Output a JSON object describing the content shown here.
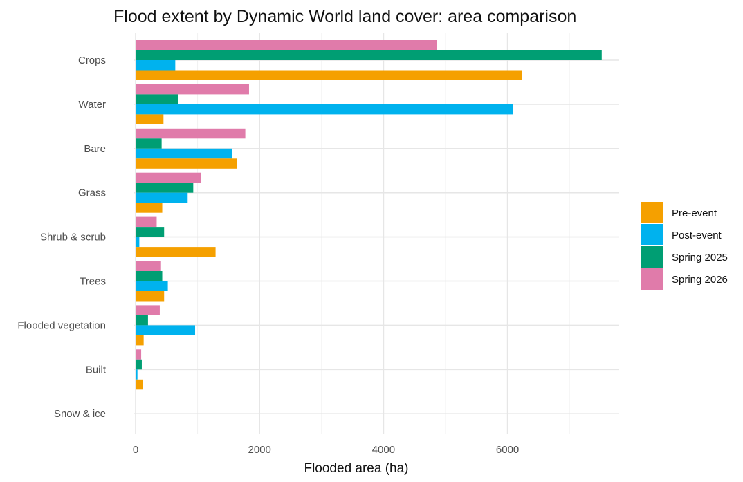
{
  "chart_data": {
    "type": "bar",
    "orientation": "horizontal",
    "title": "Flood extent by Dynamic World land cover: area comparison",
    "xlabel": "Flooded area (ha)",
    "ylabel": "",
    "xlim": [
      0,
      7900
    ],
    "xticks": [
      0,
      2000,
      4000,
      6000
    ],
    "grid": true,
    "legend_position": "right",
    "categories": [
      "Crops",
      "Water",
      "Bare",
      "Grass",
      "Shrub & scrub",
      "Trees",
      "Flooded vegetation",
      "Built",
      "Snow & ice"
    ],
    "series": [
      {
        "name": "Pre-event",
        "color": "#F5A000",
        "values": [
          6230,
          450,
          1630,
          430,
          1290,
          460,
          130,
          120,
          0
        ]
      },
      {
        "name": "Post-event",
        "color": "#00B2EE",
        "values": [
          640,
          6090,
          1560,
          840,
          60,
          520,
          960,
          30,
          10
        ]
      },
      {
        "name": "Spring 2025",
        "color": "#009E73",
        "values": [
          7520,
          690,
          420,
          930,
          460,
          430,
          200,
          100,
          0
        ]
      },
      {
        "name": "Spring 2026",
        "color": "#E07BAA",
        "values": [
          4860,
          1830,
          1770,
          1050,
          340,
          410,
          390,
          90,
          0
        ]
      }
    ]
  }
}
